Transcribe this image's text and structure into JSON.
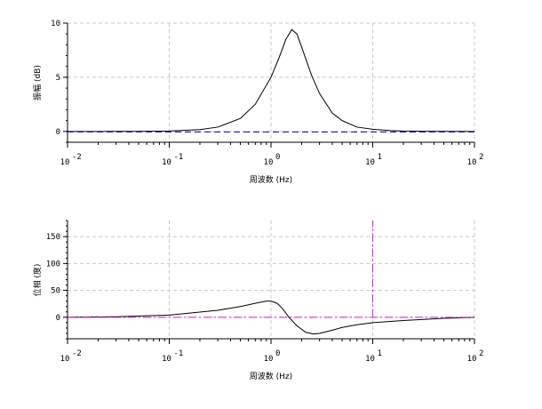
{
  "chart_data": [
    {
      "type": "line",
      "title": "",
      "xlabel": "周波数 (Hz)",
      "ylabel": "振幅 (dB)",
      "xscale": "log",
      "xlim": [
        0.01,
        100
      ],
      "ylim": [
        -1,
        10
      ],
      "x_ticks": [
        {
          "base": "10",
          "exp": "-2"
        },
        {
          "base": "10",
          "exp": "-1"
        },
        {
          "base": "10",
          "exp": "0"
        },
        {
          "base": "10",
          "exp": "1"
        },
        {
          "base": "10",
          "exp": "2"
        }
      ],
      "y_ticks": [
        "0",
        "5",
        "10"
      ],
      "grid": true,
      "series": [
        {
          "color": "#000000",
          "style": "solid",
          "x": [
            0.01,
            0.02,
            0.05,
            0.1,
            0.2,
            0.3,
            0.5,
            0.7,
            1.0,
            1.2,
            1.4,
            1.6,
            1.8,
            2.0,
            2.5,
            3.0,
            4.0,
            5.0,
            7.0,
            10,
            15,
            20,
            30,
            50,
            100
          ],
          "y": [
            0,
            0,
            0.01,
            0.04,
            0.17,
            0.4,
            1.2,
            2.5,
            5.0,
            6.8,
            8.5,
            9.4,
            9.0,
            7.8,
            5.2,
            3.5,
            1.7,
            1.0,
            0.4,
            0.2,
            0.08,
            0.04,
            0.02,
            0.01,
            0
          ]
        },
        {
          "color": "#0000aa",
          "style": "dashed",
          "x": [
            0.01,
            100
          ],
          "y": [
            -0.05,
            -0.05
          ]
        }
      ]
    },
    {
      "type": "line",
      "title": "",
      "xlabel": "周波数 (Hz)",
      "ylabel": "位相 (度)",
      "xscale": "log",
      "xlim": [
        0.01,
        100
      ],
      "ylim": [
        -40,
        180
      ],
      "x_ticks": [
        {
          "base": "10",
          "exp": "-2"
        },
        {
          "base": "10",
          "exp": "-1"
        },
        {
          "base": "10",
          "exp": "0"
        },
        {
          "base": "10",
          "exp": "1"
        },
        {
          "base": "10",
          "exp": "2"
        }
      ],
      "y_ticks": [
        "0",
        "50",
        "100",
        "150"
      ],
      "grid": true,
      "series": [
        {
          "color": "#000000",
          "style": "solid",
          "x": [
            0.01,
            0.03,
            0.1,
            0.3,
            0.5,
            0.7,
            0.9,
            1.0,
            1.15,
            1.3,
            1.5,
            1.8,
            2.2,
            2.6,
            3.0,
            4.0,
            5.0,
            7.0,
            10,
            20,
            50,
            100
          ],
          "y": [
            0,
            1,
            4,
            13,
            20,
            26,
            30,
            30,
            26,
            16,
            0,
            -16,
            -28,
            -31,
            -30,
            -24,
            -19,
            -14,
            -10,
            -6,
            -2,
            0
          ]
        },
        {
          "color": "#cc22cc",
          "style": "dashdot",
          "x": [
            0.01,
            100
          ],
          "y": [
            0,
            0
          ]
        },
        {
          "color": "#cc22cc",
          "style": "dashdot",
          "x": [
            10,
            10
          ],
          "y": [
            0,
            180
          ]
        }
      ]
    }
  ]
}
